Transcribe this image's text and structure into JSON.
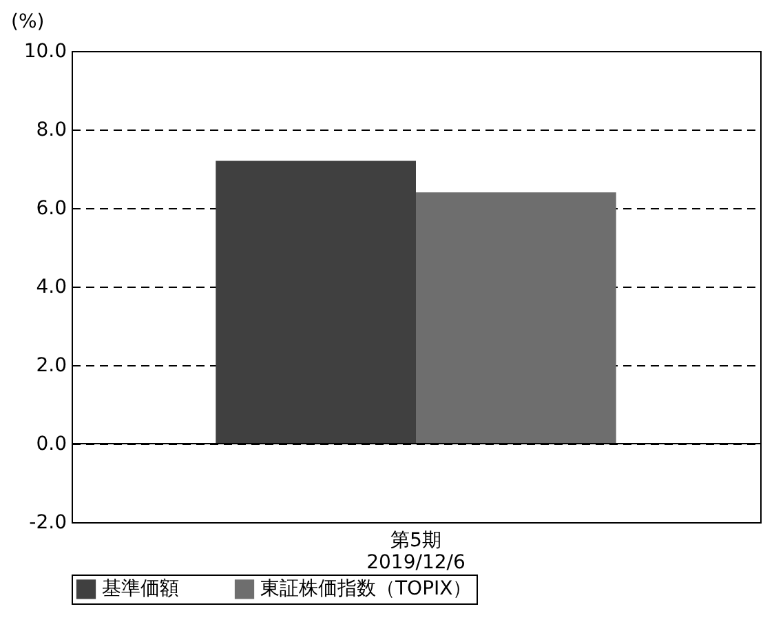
{
  "chart_data": {
    "type": "bar",
    "ylabel": "(%)",
    "categories": [
      "第5期\n2019/12/6"
    ],
    "series": [
      {
        "name": "基準価額",
        "color": "#404040",
        "values": [
          7.2
        ]
      },
      {
        "name": "東証株価指数（TOPIX）",
        "color": "#6e6e6e",
        "values": [
          6.4
        ]
      }
    ],
    "ylim": [
      -2,
      10
    ],
    "yticks": [
      {
        "value": -2,
        "label": "-2.0"
      },
      {
        "value": 0,
        "label": "0.0"
      },
      {
        "value": 2,
        "label": "2.0"
      },
      {
        "value": 4,
        "label": "4.0"
      },
      {
        "value": 6,
        "label": "6.0"
      },
      {
        "value": 8,
        "label": "8.0"
      },
      {
        "value": 10,
        "label": "10.0"
      }
    ],
    "grid": "y",
    "legend": "bottom",
    "ref_lines": [
      {
        "axis": "y",
        "value": 0,
        "color": "#000000",
        "line_style": "solid"
      }
    ]
  }
}
